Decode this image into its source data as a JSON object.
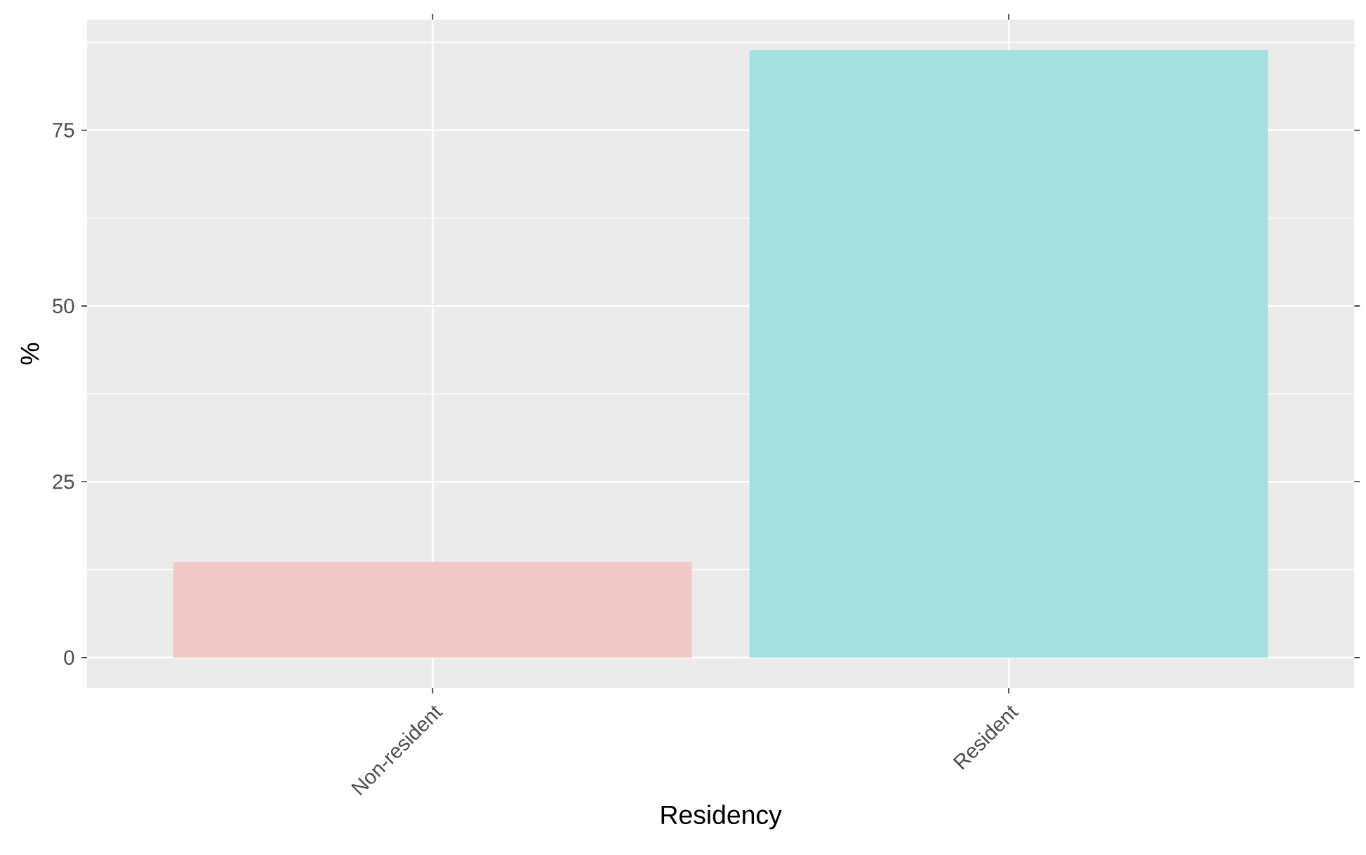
{
  "chart_data": {
    "type": "bar",
    "xlabel": "Residency",
    "ylabel": "%",
    "categories": [
      "Non-resident",
      "Resident"
    ],
    "values": [
      13.6,
      86.4
    ],
    "colors": [
      "#f0c8c5",
      "#a6dfdf"
    ],
    "ylim": [
      -4.32,
      90.72
    ],
    "yticks": [
      0,
      25,
      50,
      75
    ],
    "grid": true
  }
}
